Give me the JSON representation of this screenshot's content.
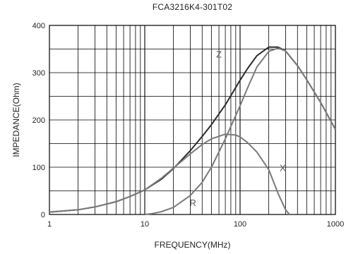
{
  "chart_data": {
    "type": "line",
    "title": "FCA3216K4-301T02",
    "xlabel": "FREQUENCY(MHz)",
    "ylabel": "IMPEDANCE(Ohm)",
    "xscale": "log",
    "xlim": [
      1,
      1000
    ],
    "ylim": [
      0,
      400
    ],
    "xticks": [
      "1",
      "10",
      "100",
      "1000"
    ],
    "yticks": [
      "0",
      "100",
      "200",
      "300",
      "400"
    ],
    "grid": true,
    "legend": "none",
    "series": [
      {
        "name": "Z",
        "color": "#2b2b2b",
        "x": [
          1,
          2,
          3,
          5,
          7,
          10,
          15,
          20,
          30,
          40,
          50,
          70,
          100,
          120,
          150,
          200,
          250,
          300,
          400,
          500,
          700,
          1000
        ],
        "y": [
          5,
          10,
          16,
          27,
          38,
          52,
          75,
          97,
          135,
          165,
          190,
          232,
          284,
          309,
          336,
          354,
          354,
          346,
          315,
          285,
          237,
          180
        ]
      },
      {
        "name": "X",
        "color": "#7a7a7a",
        "x": [
          1,
          2,
          3,
          5,
          7,
          10,
          15,
          20,
          30,
          40,
          50,
          70,
          90,
          100,
          120,
          150,
          200,
          250,
          300,
          330
        ],
        "y": [
          5,
          10,
          16,
          27,
          38,
          52,
          77,
          98,
          128,
          148,
          160,
          170,
          168,
          164,
          152,
          132,
          95,
          45,
          10,
          0
        ]
      },
      {
        "name": "R",
        "color": "#7a7a7a",
        "x": [
          10,
          12,
          15,
          20,
          30,
          40,
          50,
          70,
          100,
          120,
          150,
          200,
          250,
          300,
          400,
          500,
          700,
          1000
        ],
        "y": [
          0,
          2,
          6,
          15,
          40,
          68,
          100,
          160,
          230,
          268,
          312,
          345,
          352,
          346,
          315,
          285,
          237,
          180
        ]
      }
    ],
    "annotations": [
      {
        "text": "Z",
        "x": 60,
        "y": 332
      },
      {
        "text": "X",
        "x": 280,
        "y": 92
      },
      {
        "text": "R",
        "x": 32,
        "y": 18
      }
    ]
  }
}
